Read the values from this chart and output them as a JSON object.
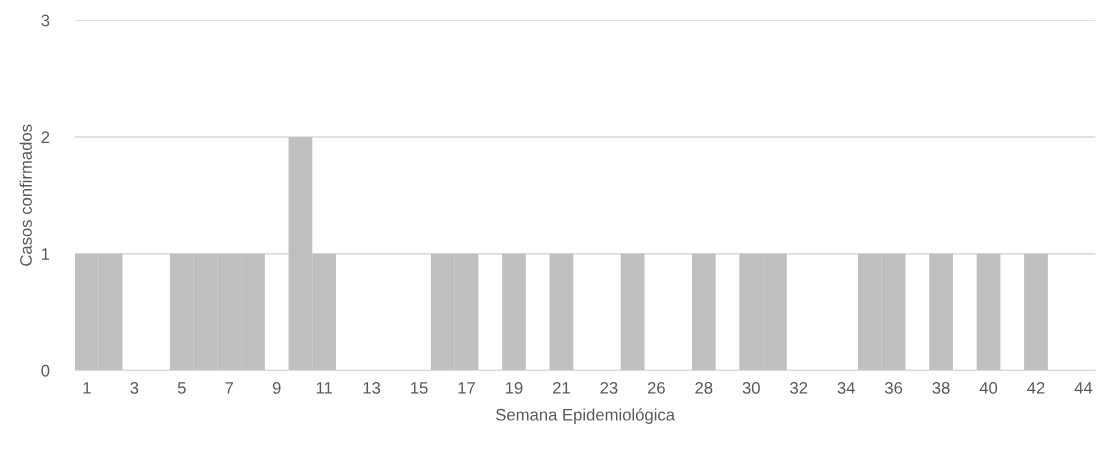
{
  "chart_data": {
    "type": "bar",
    "xlabel": "Semana Epidemiológica",
    "ylabel": "Casos confirmados",
    "categories": [
      "1",
      null,
      "3",
      null,
      "5",
      null,
      "7",
      null,
      "9",
      null,
      "11",
      null,
      "13",
      null,
      "15",
      null,
      "17",
      null,
      "19",
      null,
      "21",
      null,
      "23",
      null,
      "26",
      null,
      "28",
      null,
      "30",
      null,
      "32",
      null,
      "34",
      null,
      "36",
      null,
      "38",
      null,
      "40",
      null,
      "42",
      null,
      "44"
    ],
    "values": [
      1,
      1,
      0,
      0,
      1,
      1,
      1,
      1,
      0,
      2,
      1,
      0,
      0,
      0,
      0,
      1,
      1,
      0,
      1,
      0,
      1,
      0,
      0,
      1,
      0,
      0,
      1,
      0,
      1,
      1,
      0,
      0,
      0,
      1,
      1,
      0,
      1,
      0,
      1,
      0,
      1,
      0,
      0
    ],
    "color": "#bfbfbf",
    "ylim": [
      0,
      3
    ],
    "yticks": [
      0,
      1,
      2,
      3
    ],
    "grid": "y"
  }
}
